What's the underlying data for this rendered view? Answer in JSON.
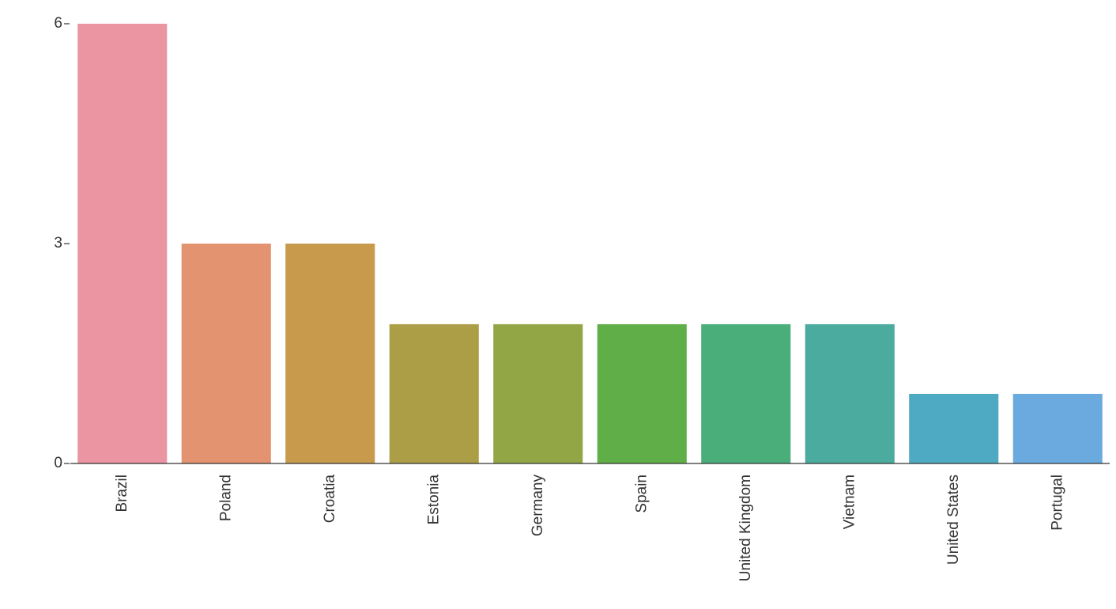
{
  "chart_data": {
    "type": "bar",
    "title": "",
    "xlabel": "",
    "ylabel": "",
    "ylim": [
      0,
      6
    ],
    "yticks": [
      0,
      3,
      6
    ],
    "grid": false,
    "legend": "none",
    "categories": [
      "Brazil",
      "Poland",
      "Croatia",
      "Estonia",
      "Germany",
      "Spain",
      "United Kingdom",
      "Vietnam",
      "United States",
      "Portugal"
    ],
    "values": [
      6,
      3,
      3,
      1.9,
      1.9,
      1.9,
      1.9,
      1.9,
      0.95,
      0.95
    ],
    "colors": [
      "#ea95a1",
      "#e39370",
      "#c89a4b",
      "#ab9e47",
      "#92a646",
      "#60ae47",
      "#4aae7b",
      "#4aab9e",
      "#4eaac3",
      "#6aaadf"
    ]
  }
}
